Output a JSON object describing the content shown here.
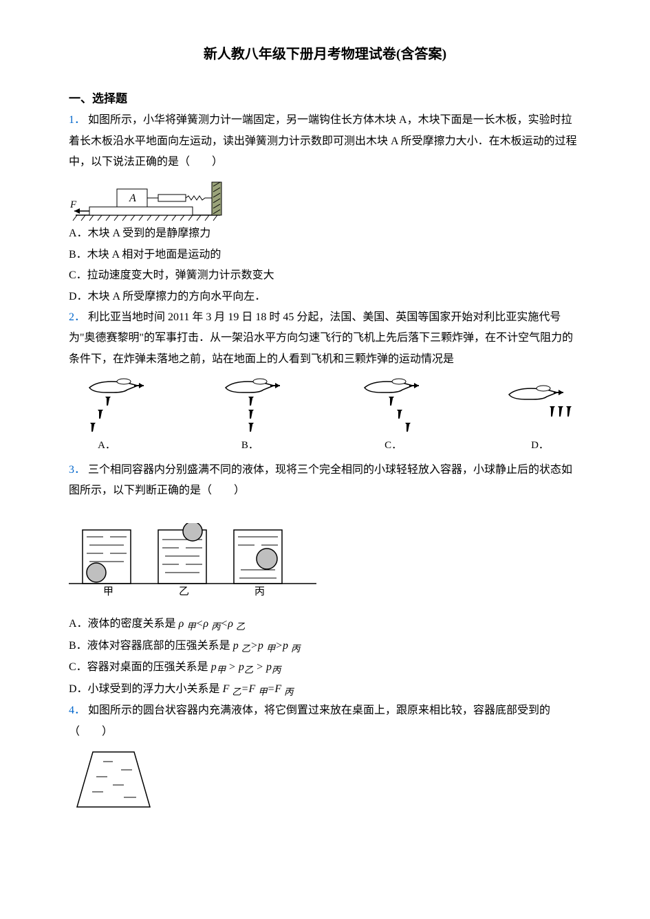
{
  "title": "新人教八年级下册月考物理试卷(含答案)",
  "section1": "一、选择题",
  "q1": {
    "num": "1．",
    "stem": "如图所示，小华将弹簧测力计一端固定，另一端钩住长方体木块 A，木块下面是一长木板，实验时拉着长木板沿水平地面向左运动，读出弹簧测力计示数即可测出木块 A 所受摩擦力大小．在木板运动的过程中，以下说法正确的是（　　）",
    "A": "A．木块 A 受到的是静摩擦力",
    "B": "B．木块 A 相对于地面是运动的",
    "C": "C．拉动速度变大时，弹簧测力计示数变大",
    "D": "D．木块 A 所受摩擦力的方向水平向左．"
  },
  "q2": {
    "num": "2．",
    "stem": "利比亚当地时间 2011 年 3 月 19 日 18 时 45 分起，法国、美国、英国等国家开始对利比亚实施代号为\"奥德赛黎明\"的军事打击．从一架沿水平方向匀速飞行的飞机上先后落下三颗炸弹，在不计空气阻力的条件下，在炸弹未落地之前，站在地面上的人看到飞机和三颗炸弹的运动情况是",
    "A": "A．",
    "B": "B．",
    "C": "C．",
    "D": "D．"
  },
  "q3": {
    "num": "3．",
    "stem": "三个相同容器内分别盛满不同的液体，现将三个完全相同的小球轻轻放入容器，小球静止后的状态如图所示，以下判断正确的是（　　）",
    "labels": {
      "a": "甲",
      "b": "乙",
      "c": "丙"
    },
    "A_pre": "A．液体的密度关系是 ",
    "A_f": "ρ <sub>甲</sub><ρ <sub>丙</sub><ρ <sub>乙</sub>",
    "B_pre": "B．液体对容器底部的压强关系是 ",
    "B_f": "p <sub>乙</sub>>p <sub>甲</sub>>p <sub>丙</sub>",
    "C_pre": "C．容器对桌面的压强关系是 ",
    "C_f": "p<sub>甲</sub> > p<sub>乙</sub> > p<sub>丙</sub>",
    "D_pre": "D．小球受到的浮力大小关系是 ",
    "D_f": "F <sub>乙</sub>=F <sub>甲</sub>=F <sub>丙</sub>"
  },
  "q4": {
    "num": "4．",
    "stem": "如图所示的圆台状容器内充满液体，将它倒置过来放在桌面上，跟原来相比较，容器底部受到的（　　）"
  },
  "colors": {
    "link": "#0066cc",
    "text": "#000000",
    "gray": "#bfbfbf",
    "wall": "#9aa37a"
  }
}
